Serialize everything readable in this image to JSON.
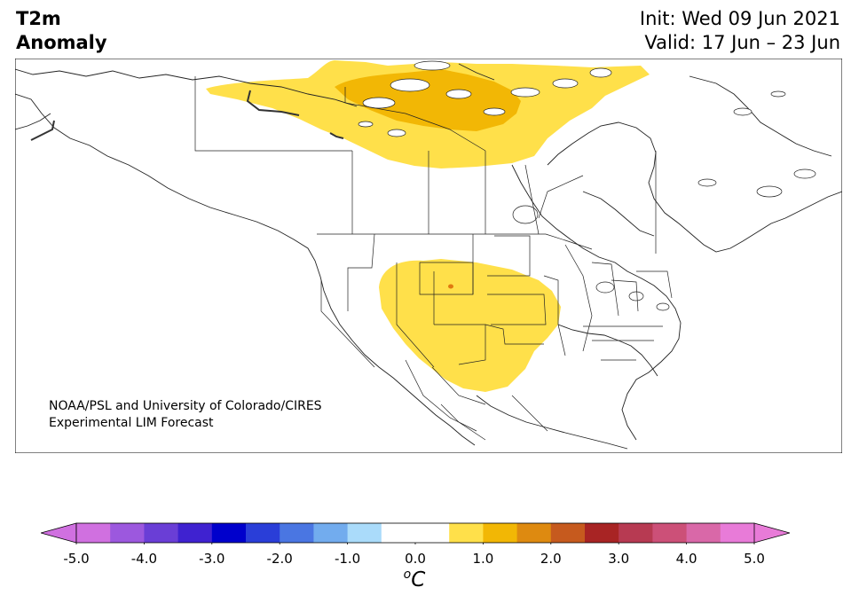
{
  "header": {
    "title_line1": "T2m",
    "title_line2": "Anomaly",
    "init": "Init: Wed 09 Jun 2021",
    "valid": "Valid: 17 Jun – 23 Jun"
  },
  "map": {
    "region": "North America",
    "anomaly_areas": [
      {
        "region": "northern Canada (Nunavut / Northwest Territories)",
        "level": "0.5 to 1.0",
        "color": "#FFE04A"
      },
      {
        "region": "northern Canada core near Hudson Bay west",
        "level": "1.0 to 1.5",
        "color": "#F2B705"
      },
      {
        "region": "US Intermountain West / Rockies / Plains",
        "level": "0.5 to 1.0",
        "color": "#FFE04A"
      },
      {
        "region": "small spot in Wyoming",
        "level": "1.5 to 2.0",
        "color": "#E07A10"
      }
    ]
  },
  "credit": {
    "line1": "NOAA/PSL and University of Colorado/CIRES",
    "line2": "Experimental LIM Forecast"
  },
  "colorbar": {
    "min": -5.0,
    "max": 5.0,
    "tick_labels": [
      "-5.0",
      "-4.0",
      "-3.0",
      "-2.0",
      "-1.0",
      "0.0",
      "1.0",
      "2.0",
      "3.0",
      "4.0",
      "5.0"
    ],
    "tick_values": [
      -5.0,
      -4.0,
      -3.0,
      -2.0,
      -1.0,
      0.0,
      1.0,
      2.0,
      3.0,
      4.0,
      5.0
    ],
    "low_extend_color": "#D070E0",
    "high_extend_color": "#E87BD8",
    "colors": [
      "#D070E0",
      "#9C58DE",
      "#6A3ED6",
      "#3F22D0",
      "#0000CC",
      "#2A3ED8",
      "#4A76E2",
      "#72ACEE",
      "#AADBFA",
      "#FFFFFF",
      "#FFFFFF",
      "#FFE04A",
      "#F2B705",
      "#DE8A10",
      "#C65A1E",
      "#A82424",
      "#B73A52",
      "#CC5078",
      "#D968A8",
      "#E87BD8"
    ],
    "unit_symbol": "o",
    "unit_letter": "C"
  }
}
